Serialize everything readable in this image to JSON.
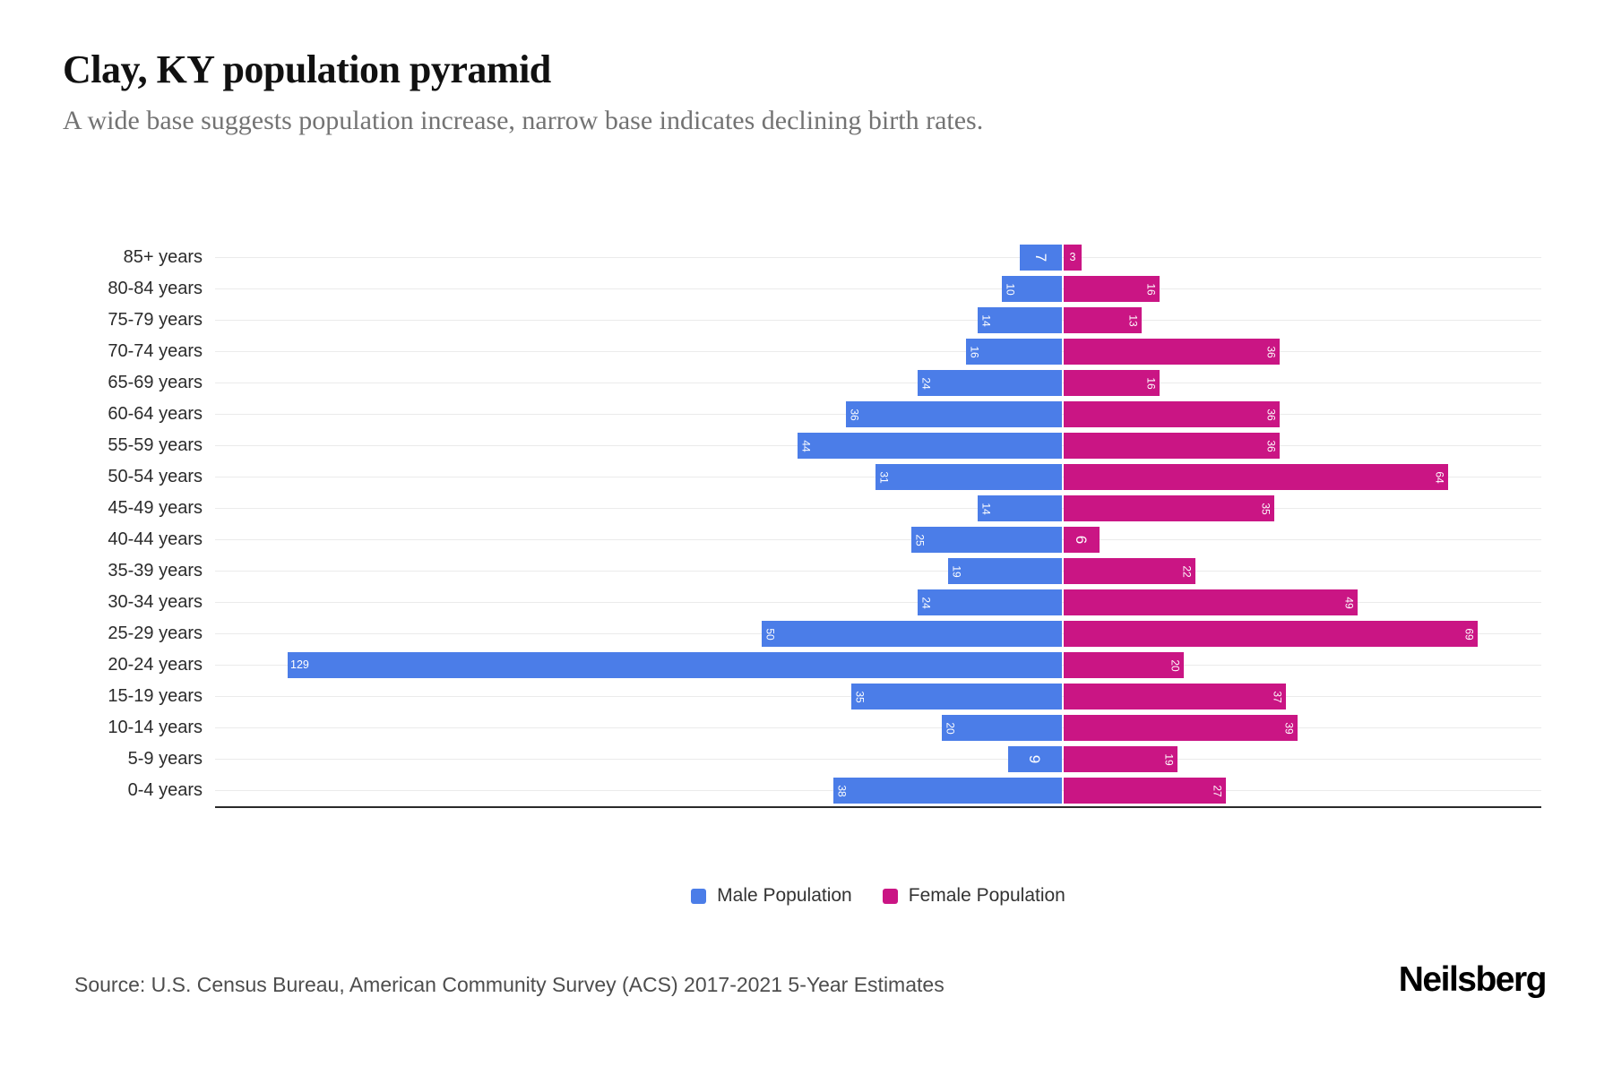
{
  "header": {
    "title": "Clay, KY population pyramid",
    "subtitle": "A wide base suggests population increase, narrow base indicates declining birth rates."
  },
  "chart_data": {
    "type": "bar",
    "variant": "population-pyramid",
    "title": "Clay, KY population pyramid",
    "xlabel": "",
    "ylabel": "",
    "grid": "on",
    "legend_position": "bottom",
    "categories": [
      "85+ years",
      "80-84 years",
      "75-79 years",
      "70-74 years",
      "65-69 years",
      "60-64 years",
      "55-59 years",
      "50-54 years",
      "45-49 years",
      "40-44 years",
      "35-39 years",
      "30-34 years",
      "25-29 years",
      "20-24 years",
      "15-19 years",
      "10-14 years",
      "5-9 years",
      "0-4 years"
    ],
    "series": [
      {
        "name": "Male Population",
        "side": "left",
        "color": "#4b7de8",
        "values": [
          7,
          10,
          14,
          16,
          24,
          36,
          44,
          31,
          14,
          25,
          19,
          24,
          50,
          129,
          35,
          20,
          9,
          38
        ],
        "label_styles": [
          "rotated-large-center",
          "rotated",
          "rotated",
          "rotated",
          "rotated",
          "rotated",
          "rotated",
          "rotated",
          "rotated",
          "rotated",
          "rotated",
          "rotated",
          "rotated",
          "horizontal",
          "rotated",
          "rotated",
          "rotated-large-center",
          "rotated"
        ]
      },
      {
        "name": "Female Population",
        "side": "right",
        "color": "#ca1584",
        "values": [
          3,
          16,
          13,
          36,
          16,
          36,
          36,
          64,
          35,
          6,
          22,
          49,
          69,
          20,
          37,
          39,
          19,
          27
        ],
        "label_styles": [
          "horizontal-center",
          "rotated",
          "rotated",
          "rotated",
          "rotated",
          "rotated",
          "rotated",
          "rotated",
          "rotated",
          "rotated-large-center",
          "rotated",
          "rotated",
          "rotated",
          "rotated",
          "rotated",
          "rotated",
          "rotated",
          "rotated"
        ]
      }
    ]
  },
  "legend": {
    "items": [
      {
        "label": "Male Population",
        "color": "#4b7de8"
      },
      {
        "label": "Female Population",
        "color": "#ca1584"
      }
    ]
  },
  "footer": {
    "source": "Source: U.S. Census Bureau, American Community Survey (ACS) 2017-2021 5-Year Estimates",
    "brand": "Neilsberg"
  }
}
